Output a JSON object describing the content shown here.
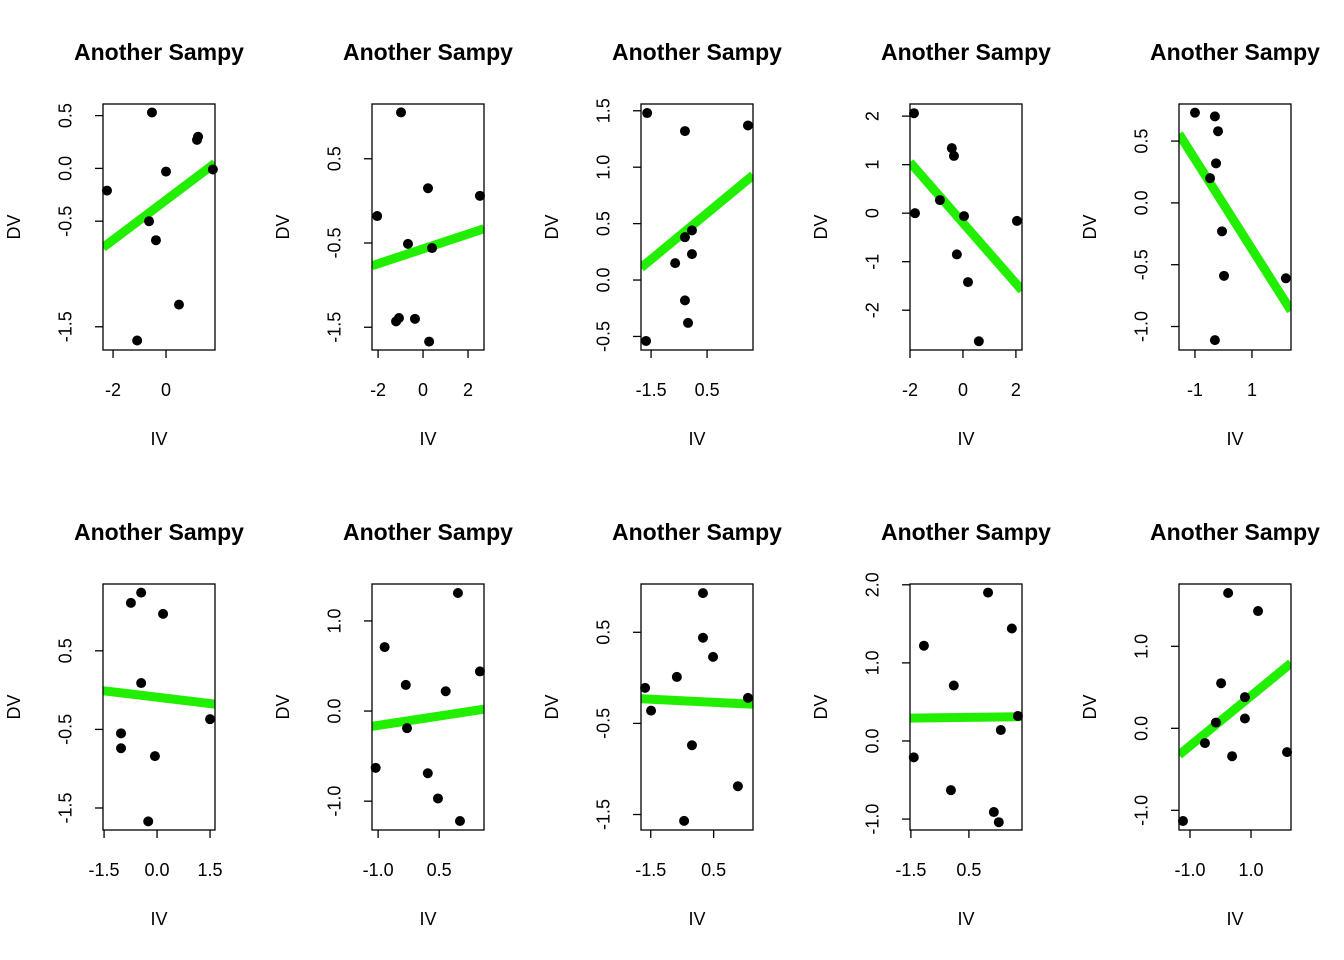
{
  "chart_data": [
    {
      "type": "scatter",
      "title": "Another Sampy",
      "xlabel": "IV",
      "ylabel": "DV",
      "color": "#000000",
      "x": [
        -2.23,
        -0.53,
        -0.64,
        -0.38,
        0.0,
        -1.09,
        0.49,
        1.17,
        1.21,
        1.77
      ],
      "y": [
        -0.21,
        0.53,
        -0.5,
        -0.68,
        -0.03,
        -1.63,
        -1.29,
        0.27,
        0.3,
        -0.01
      ],
      "xlim": [
        -2.38,
        1.85
      ],
      "ylim": [
        -1.72,
        0.61
      ],
      "xticks": [
        -2,
        0
      ],
      "yticks": [
        0.5,
        {
          "value": 0,
          "label": "0.0"
        },
        -0.5,
        -1.5
      ],
      "fit": {
        "color": "#22ee00",
        "intercept": -0.3,
        "slope": 0.189
      }
    },
    {
      "type": "scatter",
      "title": "Another Sampy",
      "xlabel": "IV",
      "ylabel": "DV",
      "color": "#000000",
      "x": [
        -2.04,
        -0.98,
        -0.67,
        0.22,
        0.4,
        -1.2,
        -1.07,
        -0.36,
        0.27,
        2.53
      ],
      "y": [
        -0.18,
        1.05,
        -0.51,
        0.15,
        -0.56,
        -1.43,
        -1.39,
        -1.4,
        -1.67,
        0.06
      ],
      "xlim": [
        -2.27,
        2.71
      ],
      "ylim": [
        -1.77,
        1.15
      ],
      "xticks": [
        -2,
        0,
        2
      ],
      "yticks": [
        0.5,
        -0.5,
        -1.5
      ],
      "fit": {
        "color": "#22ee00",
        "intercept": -0.57,
        "slope": 0.088
      }
    },
    {
      "type": "scatter",
      "title": "Another Sampy",
      "xlabel": "IV",
      "ylabel": "DV",
      "color": "#000000",
      "x": [
        -1.64,
        -0.29,
        1.96,
        -0.64,
        -0.29,
        -0.04,
        -0.04,
        -0.29,
        -0.18,
        -1.68
      ],
      "y": [
        1.48,
        1.32,
        1.37,
        0.15,
        0.38,
        0.44,
        0.23,
        -0.18,
        -0.38,
        -0.54
      ],
      "xlim": [
        -1.86,
        2.14
      ],
      "ylim": [
        -0.62,
        1.56
      ],
      "xticks": [
        -1.5,
        0.5
      ],
      "yticks": [
        1.5,
        {
          "value": 1,
          "label": "1.0"
        },
        0.5,
        {
          "value": 0,
          "label": "0.0"
        },
        -0.5
      ],
      "fit": {
        "color": "#22ee00",
        "intercept": 0.49,
        "slope": 0.205
      }
    },
    {
      "type": "scatter",
      "title": "Another Sampy",
      "xlabel": "IV",
      "ylabel": "DV",
      "color": "#000000",
      "x": [
        -1.85,
        -1.81,
        -0.87,
        -0.42,
        -0.34,
        -0.23,
        0.04,
        0.19,
        0.6,
        2.04
      ],
      "y": [
        2.06,
        0.0,
        0.27,
        1.34,
        1.18,
        -0.85,
        -0.06,
        -1.42,
        -2.64,
        -0.16
      ],
      "xlim": [
        -2.0,
        2.23
      ],
      "ylim": [
        -2.82,
        2.25
      ],
      "xticks": [
        -2,
        0,
        2
      ],
      "yticks": [
        2,
        1,
        0,
        -1,
        -2
      ],
      "fit": {
        "color": "#22ee00",
        "intercept": -0.2,
        "slope": -0.624
      }
    },
    {
      "type": "scatter",
      "title": "Another Sampy",
      "xlabel": "IV",
      "ylabel": "DV",
      "color": "#000000",
      "x": [
        -1.0,
        -0.3,
        -0.19,
        -0.26,
        -0.47,
        -0.05,
        0.02,
        -0.3,
        2.19
      ],
      "y": [
        0.73,
        0.7,
        0.58,
        0.32,
        0.2,
        -0.23,
        -0.59,
        -1.11,
        -0.61
      ],
      "xlim": [
        -1.56,
        2.37
      ],
      "ylim": [
        -1.19,
        0.8
      ],
      "xticks": [
        -1,
        1
      ],
      "yticks": [
        0.5,
        {
          "value": 0,
          "label": "0.0"
        },
        -0.5,
        {
          "value": -1,
          "label": "-1.0"
        }
      ],
      "fit": {
        "color": "#22ee00",
        "intercept": -0.01,
        "slope": -0.364
      }
    },
    {
      "type": "scatter",
      "title": "Another Sampy",
      "xlabel": "IV",
      "ylabel": "DV",
      "color": "#000000",
      "x": [
        -0.74,
        -0.45,
        0.17,
        -0.45,
        -1.02,
        -1.02,
        -0.06,
        -0.25,
        1.5
      ],
      "y": [
        1.11,
        1.24,
        0.97,
        0.09,
        -0.55,
        -0.74,
        -0.84,
        -1.67,
        -0.37
      ],
      "xlim": [
        -1.53,
        1.64
      ],
      "ylim": [
        -1.78,
        1.35
      ],
      "xticks": [
        -1.5,
        {
          "value": 0,
          "label": "0.0"
        },
        1.5
      ],
      "yticks": [
        0.5,
        -0.5,
        -1.5
      ],
      "fit": {
        "color": "#22ee00",
        "intercept": -0.09,
        "slope": -0.054
      }
    },
    {
      "type": "scatter",
      "title": "Another Sampy",
      "xlabel": "IV",
      "ylabel": "DV",
      "color": "#000000",
      "x": [
        -1.06,
        -0.84,
        -0.32,
        -0.29,
        0.22,
        0.47,
        0.66,
        0.96,
        1.01,
        1.5
      ],
      "y": [
        -0.63,
        0.71,
        0.29,
        -0.19,
        -0.69,
        -0.97,
        0.22,
        1.31,
        -1.22,
        0.44
      ],
      "xlim": [
        -1.15,
        1.6
      ],
      "ylim": [
        -1.32,
        1.41
      ],
      "xticks": [
        {
          "value": -1,
          "label": "-1.0"
        },
        0.5
      ],
      "yticks": [
        {
          "value": 1,
          "label": "1.0"
        },
        {
          "value": 0,
          "label": "0.0"
        },
        {
          "value": -1,
          "label": "-1.0"
        }
      ],
      "fit": {
        "color": "#22ee00",
        "intercept": -0.09,
        "slope": 0.069
      }
    },
    {
      "type": "scatter",
      "title": "Another Sampy",
      "xlabel": "IV",
      "ylabel": "DV",
      "color": "#000000",
      "x": [
        -1.68,
        -1.49,
        -0.67,
        0.16,
        0.16,
        0.48,
        -0.19,
        -0.44,
        1.27,
        1.59
      ],
      "y": [
        -0.11,
        -0.36,
        0.01,
        0.93,
        0.44,
        0.23,
        -0.74,
        -1.57,
        -1.19,
        -0.22
      ],
      "xlim": [
        -1.81,
        1.75
      ],
      "ylim": [
        -1.67,
        1.03
      ],
      "xticks": [
        -1.5,
        0.5
      ],
      "yticks": [
        0.5,
        -0.5,
        -1.5
      ],
      "fit": {
        "color": "#22ee00",
        "intercept": -0.26,
        "slope": -0.017
      }
    },
    {
      "type": "scatter",
      "title": "Another Sampy",
      "xlabel": "IV",
      "ylabel": "DV",
      "color": "#000000",
      "x": [
        -1.4,
        -1.05,
        -0.02,
        -0.12,
        1.16,
        1.6,
        1.36,
        1.53,
        1.98,
        2.19
      ],
      "y": [
        -0.21,
        1.22,
        0.71,
        -0.63,
        1.9,
        0.14,
        -0.91,
        -1.04,
        1.44,
        0.32
      ],
      "xlim": [
        -1.53,
        2.33
      ],
      "ylim": [
        -1.14,
        2.01
      ],
      "xticks": [
        -1.5,
        0.5
      ],
      "yticks": [
        {
          "value": 2,
          "label": "2.0"
        },
        {
          "value": 1,
          "label": "1.0"
        },
        {
          "value": 0,
          "label": "0.0"
        },
        {
          "value": -1,
          "label": "-1.0"
        }
      ],
      "fit": {
        "color": "#22ee00",
        "intercept": 0.3,
        "slope": 0.005
      }
    },
    {
      "type": "scatter",
      "title": "Another Sampy",
      "xlabel": "IV",
      "ylabel": "DV",
      "color": "#000000",
      "x": [
        -1.23,
        -0.51,
        -0.15,
        0.02,
        0.25,
        0.38,
        0.8,
        0.8,
        1.23,
        2.18
      ],
      "y": [
        -1.13,
        -0.18,
        0.07,
        0.55,
        1.65,
        -0.34,
        0.38,
        0.12,
        1.43,
        -0.29
      ],
      "xlim": [
        -1.36,
        2.31
      ],
      "ylim": [
        -1.24,
        1.76
      ],
      "xticks": [
        {
          "value": -1,
          "label": "-1.0"
        },
        {
          "value": 1,
          "label": "1.0"
        }
      ],
      "yticks": [
        {
          "value": 1,
          "label": "1.0"
        },
        {
          "value": 0,
          "label": "0.0"
        },
        {
          "value": -1,
          "label": "-1.0"
        }
      ],
      "fit": {
        "color": "#22ee00",
        "intercept": 0.09,
        "slope": 0.305
      }
    }
  ]
}
